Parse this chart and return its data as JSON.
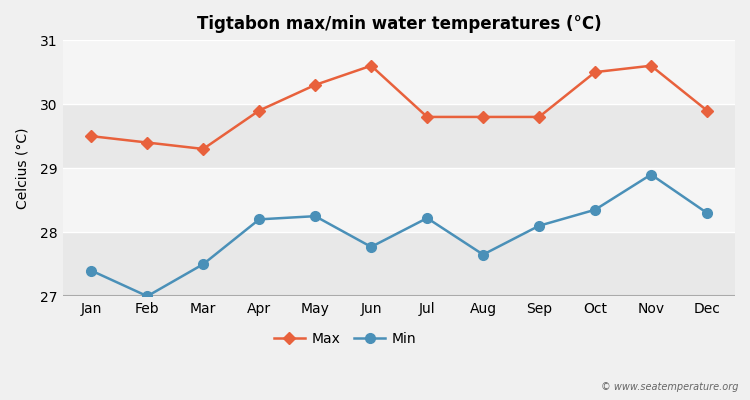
{
  "title": "Tigtabon max/min water temperatures (°C)",
  "ylabel": "Celcius (°C)",
  "months": [
    "Jan",
    "Feb",
    "Mar",
    "Apr",
    "May",
    "Jun",
    "Jul",
    "Aug",
    "Sep",
    "Oct",
    "Nov",
    "Dec"
  ],
  "max_temps": [
    29.5,
    29.4,
    29.3,
    29.9,
    30.3,
    30.6,
    29.8,
    29.8,
    29.8,
    30.5,
    30.6,
    29.9
  ],
  "min_temps": [
    27.4,
    27.0,
    27.5,
    28.2,
    28.25,
    27.77,
    28.22,
    27.65,
    28.1,
    28.35,
    28.9,
    28.3
  ],
  "max_color": "#e8613c",
  "min_color": "#4a90b8",
  "ylim_min": 27,
  "ylim_max": 31,
  "yticks": [
    27,
    28,
    29,
    30,
    31
  ],
  "band_colors": [
    "#e8e8e8",
    "#f5f5f5",
    "#e8e8e8",
    "#f5f5f5"
  ],
  "fig_bg_color": "#f0f0f0",
  "watermark": "© www.seatemperature.org",
  "legend_labels": [
    "Max",
    "Min"
  ]
}
